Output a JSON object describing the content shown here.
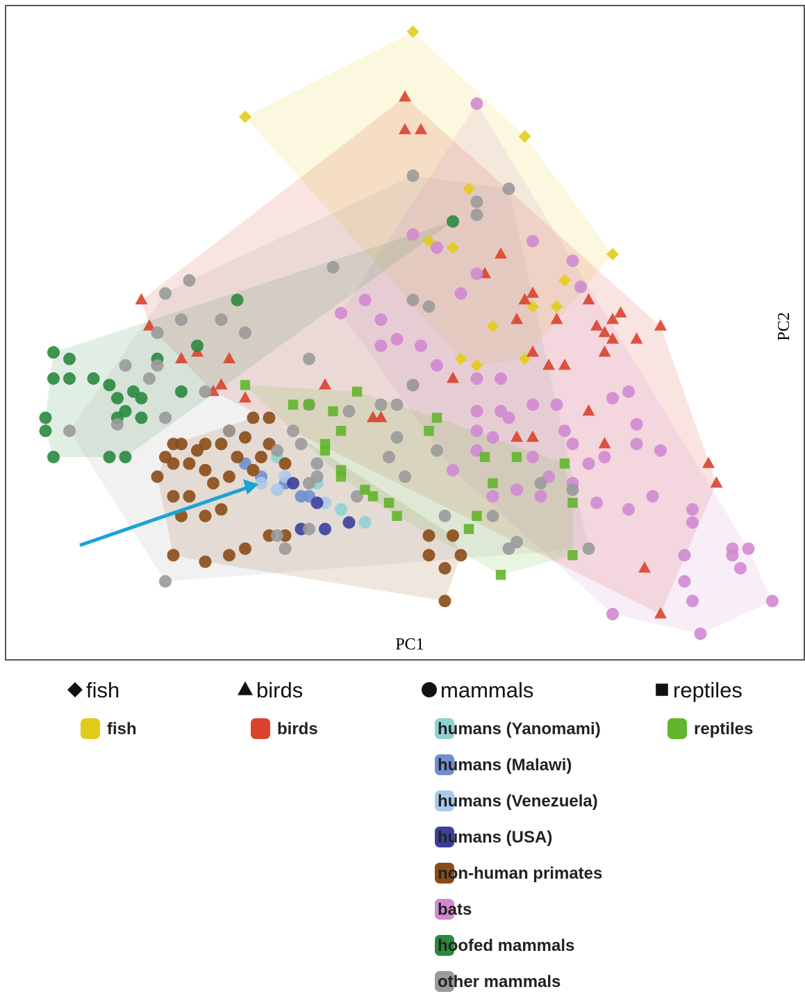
{
  "chart_data": {
    "type": "scatter",
    "x_label": "PC1",
    "y_label": "PC2",
    "xlim": [
      0,
      100
    ],
    "ylim": [
      0,
      100
    ],
    "groups": [
      {
        "name": "fish",
        "marker": "diamond",
        "series": [
          {
            "name": "fish",
            "color": "#e2cc1a",
            "hull": true,
            "x": [
              51,
              30,
              65,
              58,
              53,
              56,
              76,
              70,
              66,
              69,
              61,
              57,
              59,
              65
            ],
            "values": [
              96,
              83,
              80,
              72,
              64,
              63,
              62,
              58,
              54,
              54,
              51,
              46,
              45,
              46
            ]
          }
        ]
      },
      {
        "name": "birds",
        "marker": "triangle",
        "series": [
          {
            "name": "birds",
            "color": "#d9432c",
            "hull": true,
            "x": [
              50,
              50,
              52,
              17,
              18,
              22,
              24,
              28,
              27,
              26,
              30,
              40,
              46,
              47,
              56,
              62,
              60,
              65,
              66,
              73,
              64,
              69,
              74,
              76,
              77,
              75,
              76,
              79,
              82,
              66,
              68,
              70,
              75,
              73,
              64,
              66,
              75,
              88,
              89,
              80,
              82
            ],
            "values": [
              86,
              81,
              81,
              55,
              51,
              46,
              47,
              46,
              42,
              41,
              40,
              42,
              37,
              37,
              43,
              62,
              59,
              55,
              56,
              55,
              52,
              52,
              51,
              52,
              53,
              50,
              49,
              49,
              51,
              47,
              45,
              45,
              47,
              38,
              34,
              34,
              33,
              30,
              27,
              14,
              7
            ]
          }
        ]
      },
      {
        "name": "mammals",
        "marker": "circle",
        "series": [
          {
            "name": "humans (Yanomami)",
            "color": "#8dd3d3",
            "hull": false,
            "x": [
              34,
              45,
              42,
              39
            ],
            "values": [
              31,
              21,
              23,
              27
            ]
          },
          {
            "name": "humans (Malawi)",
            "color": "#6f8fcf",
            "hull": false,
            "x": [
              30,
              32,
              37,
              35,
              38
            ],
            "values": [
              30,
              28,
              25,
              27,
              25
            ]
          },
          {
            "name": "humans (Venezuela)",
            "color": "#a9c9ea",
            "hull": false,
            "x": [
              32,
              35,
              34,
              40
            ],
            "values": [
              27,
              28,
              26,
              24
            ]
          },
          {
            "name": "humans (USA)",
            "color": "#3b3f9c",
            "hull": false,
            "x": [
              36,
              39,
              37,
              40,
              43
            ],
            "values": [
              27,
              24,
              20,
              20,
              21
            ]
          },
          {
            "name": "non-human primates",
            "color": "#8b4b17",
            "hull": true,
            "x": [
              21,
              22,
              24,
              25,
              27,
              28,
              30,
              31,
              33,
              32,
              21,
              23,
              25,
              26,
              28,
              19,
              21,
              23,
              27,
              25,
              22,
              33,
              35,
              30,
              28,
              25,
              21,
              55,
              53,
              56,
              57,
              53,
              55,
              33,
              35,
              20,
              29,
              31
            ],
            "values": [
              33,
              33,
              32,
              33,
              33,
              35,
              34,
              37,
              37,
              31,
              30,
              30,
              29,
              27,
              28,
              28,
              25,
              25,
              23,
              22,
              22,
              19,
              19,
              17,
              16,
              15,
              16,
              9,
              19,
              19,
              16,
              16,
              14,
              33,
              30,
              31,
              31,
              29
            ]
          },
          {
            "name": "bats",
            "color": "#d08ad0",
            "hull": true,
            "x": [
              59,
              51,
              54,
              66,
              59,
              57,
              71,
              72,
              42,
              45,
              47,
              47,
              49,
              52,
              51,
              54,
              59,
              62,
              66,
              69,
              76,
              78,
              59,
              62,
              63,
              59,
              61,
              70,
              71,
              59,
              66,
              73,
              75,
              79,
              79,
              82,
              68,
              71,
              61,
              67,
              74,
              78,
              81,
              86,
              86,
              85,
              85,
              86,
              87,
              91,
              93,
              91,
              92,
              96,
              56,
              76,
              64
            ],
            "values": [
              85,
              65,
              63,
              64,
              59,
              56,
              61,
              57,
              53,
              55,
              52,
              48,
              49,
              48,
              42,
              45,
              43,
              43,
              39,
              39,
              40,
              41,
              38,
              38,
              37,
              35,
              34,
              35,
              33,
              32,
              31,
              30,
              31,
              36,
              33,
              32,
              28,
              27,
              25,
              25,
              24,
              23,
              25,
              23,
              21,
              16,
              12,
              9,
              4,
              17,
              17,
              16,
              14,
              9,
              29,
              7,
              26
            ]
          },
          {
            "name": "hoofed mammals",
            "color": "#2a8a3e",
            "hull": true,
            "x": [
              6,
              8,
              6,
              8,
              11,
              5,
              5,
              6,
              13,
              15,
              13,
              14,
              16,
              17,
              15,
              17,
              14,
              19,
              22,
              29,
              24,
              56
            ],
            "values": [
              47,
              46,
              43,
              43,
              43,
              37,
              35,
              31,
              31,
              31,
              42,
              40,
              41,
              40,
              38,
              37,
              37,
              46,
              41,
              55,
              48,
              67
            ]
          },
          {
            "name": "other mammals",
            "color": "#9a9a9a",
            "hull": true,
            "x": [
              51,
              63,
              59,
              59,
              41,
              20,
              23,
              22,
              27,
              30,
              19,
              15,
              19,
              18,
              14,
              8,
              20,
              25,
              38,
              51,
              53,
              51,
              49,
              38,
              36,
              37,
              39,
              38,
              39,
              28,
              34,
              43,
              47,
              49,
              48,
              54,
              50,
              44,
              38,
              35,
              34,
              63,
              64,
              73,
              20,
              67,
              71,
              61,
              55
            ],
            "values": [
              74,
              72,
              70,
              68,
              60,
              56,
              58,
              52,
              52,
              50,
              50,
              45,
              45,
              43,
              36,
              35,
              37,
              41,
              46,
              55,
              54,
              42,
              39,
              39,
              35,
              33,
              30,
              27,
              28,
              35,
              32,
              38,
              39,
              34,
              31,
              32,
              28,
              25,
              20,
              17,
              19,
              17,
              18,
              17,
              12,
              27,
              26,
              22,
              22
            ]
          }
        ]
      },
      {
        "name": "reptiles",
        "marker": "square",
        "series": [
          {
            "name": "reptiles",
            "color": "#62b52c",
            "hull": true,
            "x": [
              30,
              36,
              38,
              44,
              41,
              42,
              53,
              54,
              40,
              40,
              42,
              42,
              46,
              48,
              49,
              45,
              60,
              64,
              70,
              61,
              59,
              58,
              71,
              71,
              62
            ],
            "values": [
              42,
              39,
              39,
              41,
              38,
              35,
              35,
              37,
              33,
              32,
              29,
              28,
              25,
              24,
              22,
              26,
              31,
              31,
              30,
              27,
              22,
              20,
              24,
              16,
              13
            ]
          }
        ]
      }
    ]
  }
}
